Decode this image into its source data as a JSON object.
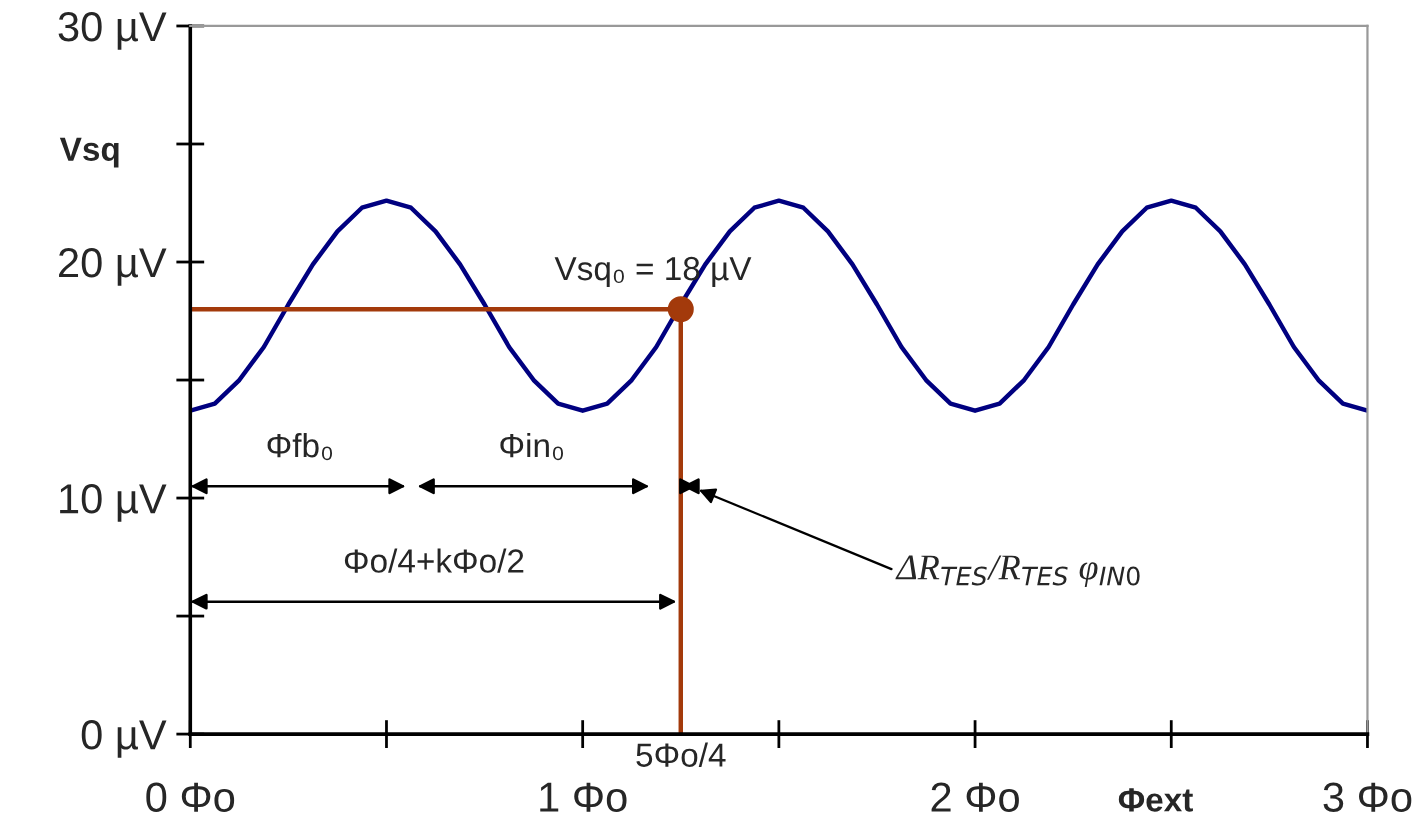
{
  "chart_data": {
    "type": "line",
    "xlabel": "Φext",
    "ylabel": "Vsq",
    "xlim": [
      0,
      3
    ],
    "ylim": [
      0,
      30
    ],
    "xticks": [
      {
        "value": 0,
        "label": "0 Φo"
      },
      {
        "value": 0.5,
        "label": null
      },
      {
        "value": 1,
        "label": "1 Φo"
      },
      {
        "value": 1.5,
        "label": null
      },
      {
        "value": 2,
        "label": "2 Φo"
      },
      {
        "value": 2.5,
        "label": null
      },
      {
        "value": 3,
        "label": "3 Φo"
      }
    ],
    "yticks": [
      {
        "value": 0,
        "label": "0 µV"
      },
      {
        "value": 5,
        "label": null
      },
      {
        "value": 10,
        "label": "10 µV"
      },
      {
        "value": 15,
        "label": null
      },
      {
        "value": 20,
        "label": "20 µV"
      },
      {
        "value": 25,
        "label": null
      },
      {
        "value": 30,
        "label": "30 µV"
      }
    ],
    "grid": false,
    "series": [
      {
        "color": "#000080",
        "x": [
          0,
          0.0625,
          0.125,
          0.1875,
          0.25,
          0.3125,
          0.375,
          0.4375,
          0.5,
          0.5625,
          0.625,
          0.6875,
          0.75,
          0.8125,
          0.875,
          0.9375,
          1,
          1.0625,
          1.125,
          1.1875,
          1.25,
          1.3125,
          1.375,
          1.4375,
          1.5,
          1.5625,
          1.625,
          1.6875,
          1.75,
          1.8125,
          1.875,
          1.9375,
          2,
          2.0625,
          2.125,
          2.1875,
          2.25,
          2.3125,
          2.375,
          2.4375,
          2.5,
          2.5625,
          2.625,
          2.6875,
          2.75,
          2.8125,
          2.875,
          2.9375,
          3
        ],
        "values": [
          13.7,
          14.0,
          15.0,
          16.4,
          18.2,
          19.9,
          21.3,
          22.3,
          22.6,
          22.3,
          21.3,
          19.9,
          18.2,
          16.4,
          15.0,
          14.0,
          13.7,
          14.0,
          15.0,
          16.4,
          18.2,
          19.9,
          21.3,
          22.3,
          22.6,
          22.3,
          21.3,
          19.9,
          18.2,
          16.4,
          15.0,
          14.0,
          13.7,
          14.0,
          15.0,
          16.4,
          18.2,
          19.9,
          21.3,
          22.3,
          22.6,
          22.3,
          21.3,
          19.9,
          18.2,
          16.4,
          15.0,
          14.0,
          13.7
        ]
      },
      {
        "type": "line",
        "color": "#a33a0b",
        "x": [
          0,
          1.25,
          1.25
        ],
        "values": [
          18,
          18,
          0
        ]
      },
      {
        "type": "scatter",
        "color": "#a33a0b",
        "marker": "circle",
        "x": [
          1.25
        ],
        "values": [
          18
        ]
      }
    ],
    "annotations": [
      {
        "text": "Vsq₀ = 18 µV",
        "x": 1.25,
        "y": 18
      },
      "Φfb₀",
      "Φin₀",
      "Φo/4+kΦo/2",
      "ΔR$_{TES}$/R$_{TES}$ φ$_{IN0}$",
      {
        "text": "5Φo/4",
        "x": 1.25,
        "y": 0
      }
    ]
  }
}
